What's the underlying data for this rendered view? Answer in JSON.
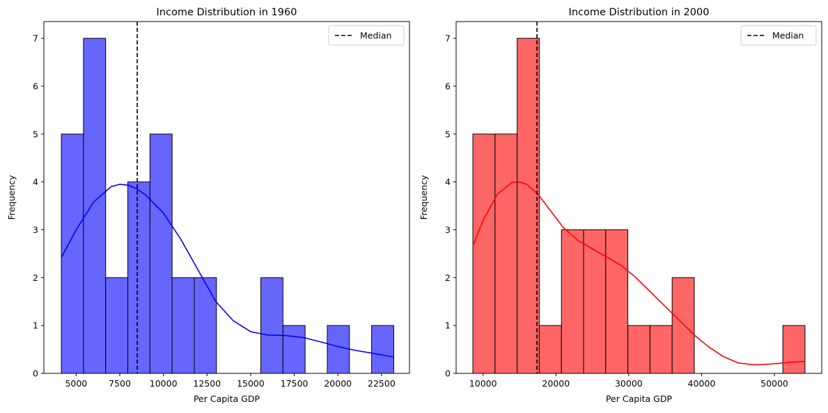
{
  "chart_data": [
    {
      "type": "histogram",
      "title": "Income Distribution in 1960",
      "xlabel": "Per Capita GDP",
      "ylabel": "Frequency",
      "xlim": [
        3150,
        24100
      ],
      "ylim": [
        0,
        7.35
      ],
      "xticks": [
        5000,
        7500,
        10000,
        12500,
        15000,
        17500,
        20000,
        22500
      ],
      "xtick_labels": [
        "5000",
        "7500",
        "10000",
        "12500",
        "15000",
        "17500",
        "20000",
        "22500"
      ],
      "yticks": [
        0,
        1,
        2,
        3,
        4,
        5,
        6,
        7
      ],
      "ytick_labels": [
        "0",
        "1",
        "2",
        "3",
        "4",
        "5",
        "6",
        "7"
      ],
      "bin_edges": [
        4150,
        5420,
        6690,
        7960,
        9230,
        10500,
        11770,
        13040,
        14310,
        15580,
        16850,
        18120,
        19390,
        20660,
        21930,
        23200
      ],
      "counts": [
        5,
        7,
        2,
        4,
        5,
        2,
        2,
        0,
        0,
        2,
        1,
        0,
        1,
        0,
        1
      ],
      "bar_color": "#6666ff",
      "kde": {
        "color": "#0000ff",
        "x": [
          4150,
          5000,
          6000,
          7000,
          7500,
          8000,
          8500,
          9000,
          10000,
          11000,
          12000,
          13000,
          14000,
          15000,
          16000,
          17000,
          18000,
          19000,
          20000,
          21000,
          22000,
          23200
        ],
        "y": [
          2.42,
          3.0,
          3.58,
          3.9,
          3.95,
          3.93,
          3.85,
          3.72,
          3.35,
          2.8,
          2.15,
          1.5,
          1.1,
          0.87,
          0.8,
          0.79,
          0.75,
          0.66,
          0.56,
          0.48,
          0.42,
          0.34
        ]
      },
      "median": 8500,
      "median_label": "Median",
      "legend": "top-right"
    },
    {
      "type": "histogram",
      "title": "Income Distribution in 2000",
      "xlabel": "Per Capita GDP",
      "ylabel": "Frequency",
      "xlim": [
        6300,
        56500
      ],
      "ylim": [
        0,
        7.35
      ],
      "xticks": [
        10000,
        20000,
        30000,
        40000,
        50000
      ],
      "xtick_labels": [
        "10000",
        "20000",
        "30000",
        "40000",
        "50000"
      ],
      "yticks": [
        0,
        1,
        2,
        3,
        4,
        5,
        6,
        7
      ],
      "ytick_labels": [
        "0",
        "1",
        "2",
        "3",
        "4",
        "5",
        "6",
        "7"
      ],
      "bin_edges": [
        8600,
        11640,
        14680,
        17720,
        20760,
        23800,
        26840,
        29880,
        32920,
        35960,
        39000,
        42040,
        45080,
        48120,
        51160,
        54200
      ],
      "counts": [
        5,
        5,
        7,
        1,
        3,
        3,
        3,
        1,
        1,
        2,
        0,
        0,
        0,
        0,
        1
      ],
      "bar_color": "#ff6666",
      "kde": {
        "color": "#ff0000",
        "x": [
          8600,
          10000,
          12000,
          14000,
          15000,
          16000,
          17500,
          19000,
          21000,
          23000,
          25000,
          27000,
          29000,
          31000,
          33000,
          35000,
          37000,
          39000,
          41000,
          43000,
          45000,
          47000,
          48000,
          50000,
          52000,
          54200
        ],
        "y": [
          2.66,
          3.2,
          3.75,
          3.99,
          4.0,
          3.95,
          3.75,
          3.45,
          3.05,
          2.78,
          2.6,
          2.43,
          2.25,
          2.0,
          1.7,
          1.4,
          1.1,
          0.8,
          0.55,
          0.35,
          0.22,
          0.18,
          0.18,
          0.2,
          0.23,
          0.25
        ]
      },
      "median": 17400,
      "median_label": "Median",
      "legend": "top-right"
    }
  ]
}
